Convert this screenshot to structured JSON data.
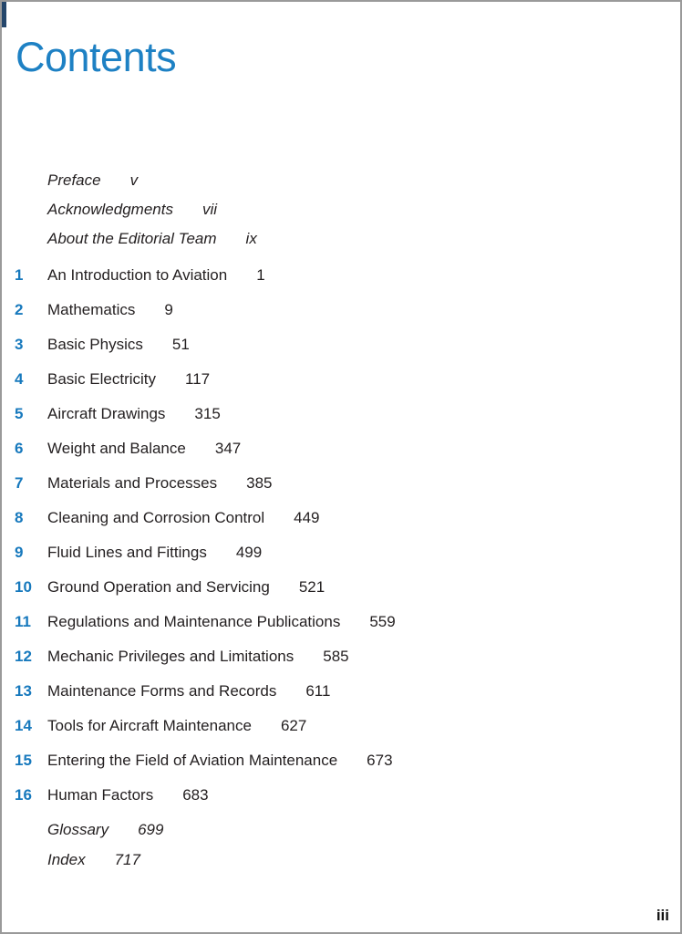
{
  "page": {
    "title": "Contents",
    "folio": "iii",
    "colors": {
      "accent_blue_title": "#1e81c4",
      "accent_blue_numbers": "#1779bd",
      "body_text": "#231f20",
      "page_border": "#9a9a9a",
      "corner_mark_navy": "#24466b"
    }
  },
  "toc": {
    "front_matter": [
      {
        "label": "Preface",
        "page": "v"
      },
      {
        "label": "Acknowledgments",
        "page": "vii"
      },
      {
        "label": "About the Editorial Team",
        "page": "ix"
      }
    ],
    "chapters": [
      {
        "number": "1",
        "title": "An Introduction to Aviation",
        "page": "1"
      },
      {
        "number": "2",
        "title": "Mathematics",
        "page": "9"
      },
      {
        "number": "3",
        "title": "Basic Physics",
        "page": "51"
      },
      {
        "number": "4",
        "title": "Basic Electricity",
        "page": "117"
      },
      {
        "number": "5",
        "title": "Aircraft Drawings",
        "page": "315"
      },
      {
        "number": "6",
        "title": "Weight and Balance",
        "page": "347"
      },
      {
        "number": "7",
        "title": "Materials and Processes",
        "page": "385"
      },
      {
        "number": "8",
        "title": "Cleaning and Corrosion Control",
        "page": "449"
      },
      {
        "number": "9",
        "title": "Fluid Lines and Fittings",
        "page": "499"
      },
      {
        "number": "10",
        "title": "Ground Operation and Servicing",
        "page": "521"
      },
      {
        "number": "11",
        "title": "Regulations and Maintenance Publications",
        "page": "559"
      },
      {
        "number": "12",
        "title": "Mechanic Privileges and Limitations",
        "page": "585"
      },
      {
        "number": "13",
        "title": "Maintenance Forms and Records",
        "page": "611"
      },
      {
        "number": "14",
        "title": "Tools for Aircraft Maintenance",
        "page": "627"
      },
      {
        "number": "15",
        "title": "Entering the Field of Aviation Maintenance",
        "page": "673"
      },
      {
        "number": "16",
        "title": "Human Factors",
        "page": "683"
      }
    ],
    "back_matter": [
      {
        "label": "Glossary",
        "page": "699"
      },
      {
        "label": "Index",
        "page": "717"
      }
    ]
  }
}
